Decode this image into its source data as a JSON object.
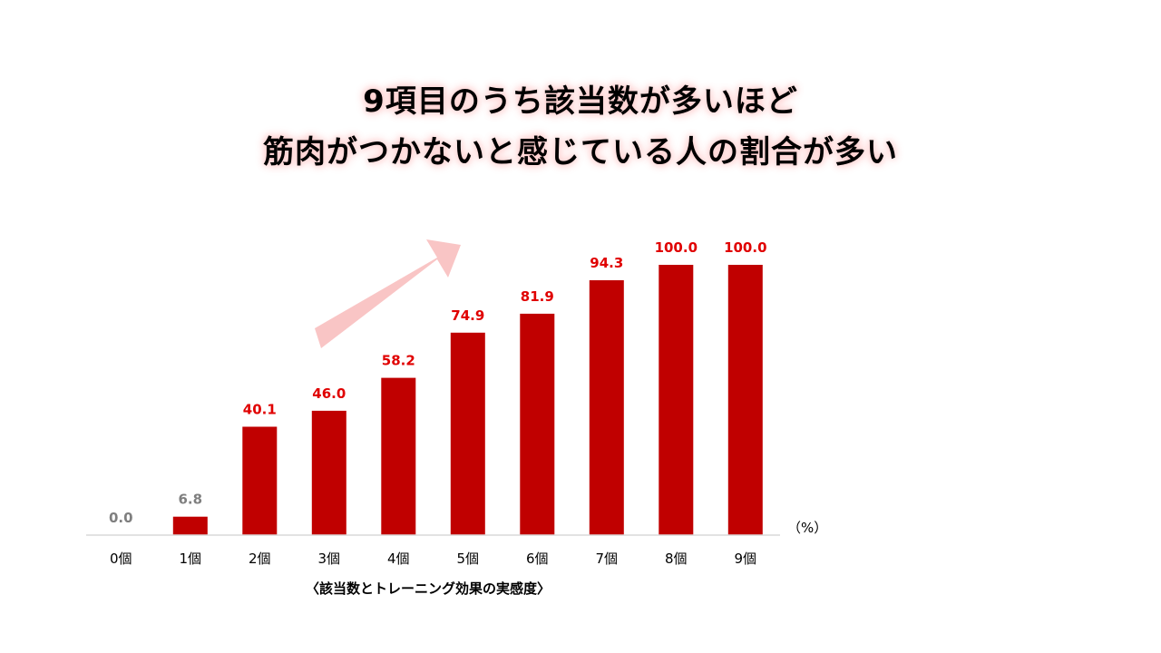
{
  "title": {
    "line1": "9項目のうち該当数が多いほど",
    "line2": "筋肉がつかないと感じている人の割合が多い"
  },
  "colors": {
    "bar": "#c00000",
    "label_high": "#e00000",
    "label_low": "#7f7f7f",
    "arrow": "#f9c5c5",
    "axis": "#d9d9d9"
  },
  "chart_data": {
    "type": "bar",
    "categories": [
      "0個",
      "1個",
      "2個",
      "3個",
      "4個",
      "5個",
      "6個",
      "7個",
      "8個",
      "9個"
    ],
    "values": [
      0.0,
      6.8,
      40.1,
      46.0,
      58.2,
      74.9,
      81.9,
      94.3,
      100.0,
      100.0
    ],
    "value_labels": [
      "0.0",
      "6.8",
      "40.1",
      "46.0",
      "58.2",
      "74.9",
      "81.9",
      "94.3",
      "100.0",
      "100.0"
    ],
    "unit": "（%）",
    "xlabel": "〈該当数とトレーニング効果の実感度〉",
    "ylabel": "",
    "ylim": [
      0,
      100
    ],
    "grid": false,
    "legend": "none",
    "annotations": [
      "upward-trend-arrow"
    ]
  }
}
